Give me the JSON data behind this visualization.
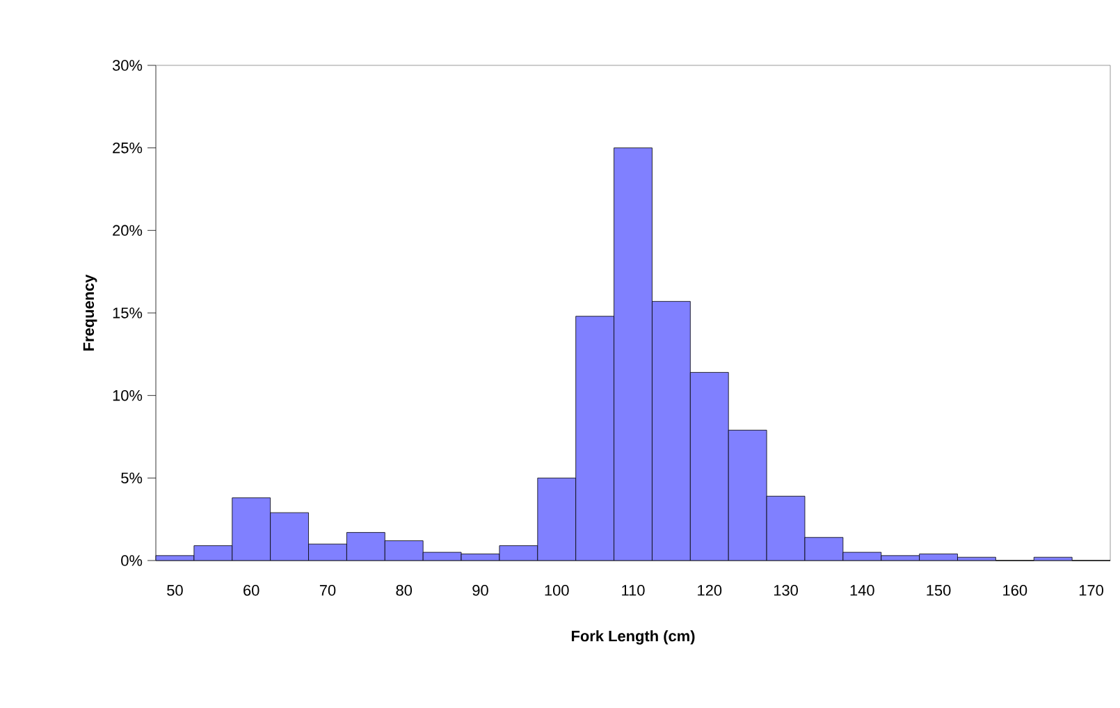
{
  "chart_data": {
    "type": "bar",
    "xlabel": "Fork Length (cm)",
    "ylabel": "Frequency",
    "categories": [
      "50",
      null,
      "60",
      null,
      "70",
      null,
      "80",
      null,
      "90",
      null,
      "100",
      null,
      "110",
      null,
      "120",
      null,
      "130",
      null,
      "140",
      null,
      "150",
      null,
      "160",
      null,
      "170"
    ],
    "values": [
      0.3,
      0.9,
      3.8,
      2.9,
      1.0,
      1.7,
      1.2,
      0.5,
      0.4,
      0.9,
      5.0,
      14.8,
      25.0,
      15.7,
      11.4,
      7.9,
      3.9,
      1.4,
      0.5,
      0.3,
      0.4,
      0.2,
      0,
      0.2,
      0
    ],
    "color": "#8080ff",
    "ylim": [
      0,
      30
    ],
    "yticks": [
      {
        "value": 0,
        "label": "0%"
      },
      {
        "value": 5,
        "label": "5%"
      },
      {
        "value": 10,
        "label": "10%"
      },
      {
        "value": 15,
        "label": "15%"
      },
      {
        "value": 20,
        "label": "20%"
      },
      {
        "value": 25,
        "label": "25%"
      },
      {
        "value": 30,
        "label": "30%"
      }
    ],
    "grid": false
  }
}
